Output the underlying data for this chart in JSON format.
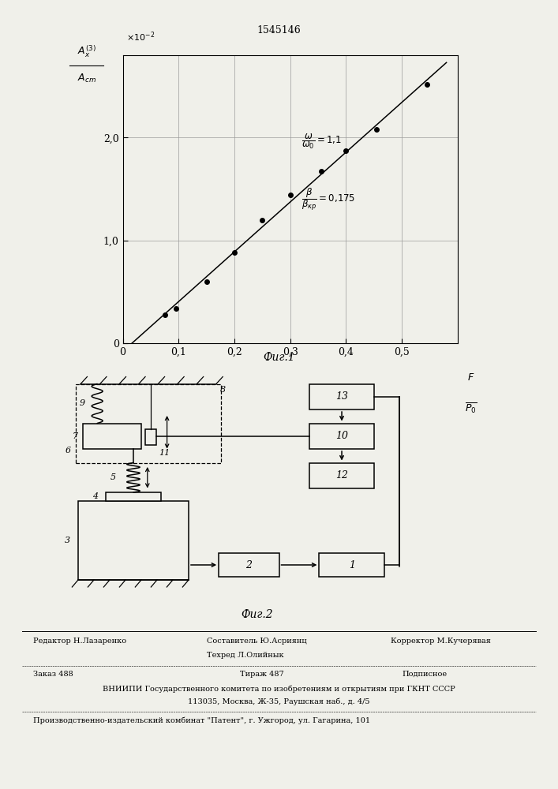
{
  "patent_number": "1545146",
  "bg_color": "#f0f0ea",
  "fig1": {
    "title": "Фиг.1",
    "scale_label": "x10^{-2}",
    "xlabel": "F/P_0",
    "xlim": [
      0,
      0.6
    ],
    "ylim": [
      0,
      2.8
    ],
    "xticks": [
      0.0,
      0.1,
      0.2,
      0.3,
      0.4,
      0.5
    ],
    "yticks": [
      0.0,
      1.0,
      2.0
    ],
    "xtick_labels": [
      "0",
      "0,1",
      "0,2",
      "0,3",
      "0,4",
      "0,5"
    ],
    "ytick_labels": [
      "0",
      "1,0",
      "2,0"
    ],
    "data_x": [
      0.075,
      0.095,
      0.15,
      0.2,
      0.25,
      0.3,
      0.355,
      0.4,
      0.455,
      0.545
    ],
    "data_y": [
      0.28,
      0.34,
      0.6,
      0.88,
      1.2,
      1.44,
      1.67,
      1.87,
      2.08,
      2.52
    ],
    "grid_color": "#999999",
    "annotation1": "\\frac{\\omega}{\\omega_0}=1{,}1",
    "annotation2": "\\frac{\\beta}{\\beta_{\\kappa p}}=0{,}175"
  },
  "footer": {
    "line1_left": "Редактор Н.Лазаренко",
    "line1_center_top": "Составитель Ю.Асриянц",
    "line1_center_bot": "Техред Л.Олийнык",
    "line1_right": "Корректор М.Кучерявая",
    "line2_left": "Заказ 488",
    "line2_center": "Тираж 487",
    "line2_right": "Подписное",
    "line3": "ВНИИПИ Государственного комитета по изобретениям и открытиям при ГКНТ СССР",
    "line4": "113035, Москва, Ж-35, Раушская наб., д. 4/5",
    "line5": "Производственно-издательский комбинат \"Патент\", г. Ужгород, ул. Гагарина, 101"
  }
}
